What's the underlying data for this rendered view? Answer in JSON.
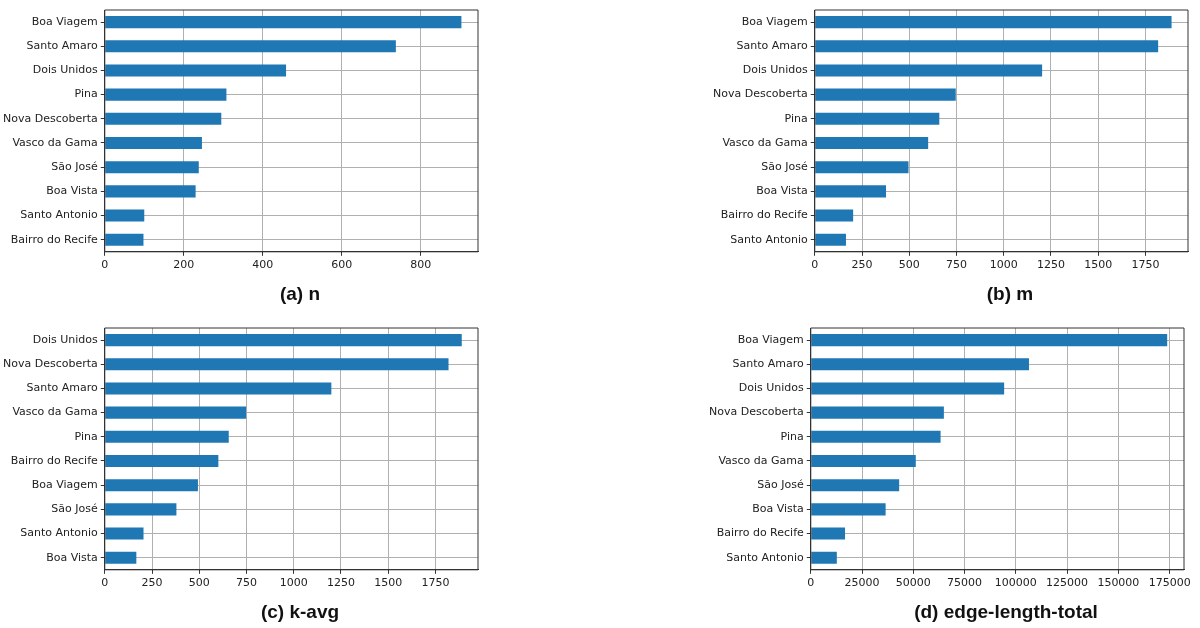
{
  "chart_data": [
    {
      "type": "bar",
      "orientation": "horizontal",
      "title": "(a) n",
      "categories": [
        "Boa Viagem",
        "Santo Amaro",
        "Dois Unidos",
        "Pina",
        "Nova Descoberta",
        "Vasco da Gama",
        "São José",
        "Boa Vista",
        "Santo Antonio",
        "Bairro do Recife"
      ],
      "values": [
        903,
        737,
        459,
        308,
        295,
        246,
        238,
        230,
        100,
        98
      ],
      "color": "#1f77b4",
      "xlim": [
        0,
        945
      ],
      "xticks": [
        0,
        200,
        400,
        600,
        800
      ],
      "grid": true
    },
    {
      "type": "bar",
      "orientation": "horizontal",
      "title": "(b) m",
      "categories": [
        "Boa Viagem",
        "Santo Amaro",
        "Dois Unidos",
        "Nova Descoberta",
        "Pina",
        "Vasco da Gama",
        "São José",
        "Boa Vista",
        "Bairro do Recife",
        "Santo Antonio"
      ],
      "values": [
        1888,
        1817,
        1203,
        746,
        659,
        600,
        496,
        377,
        203,
        165
      ],
      "color": "#1f77b4",
      "xlim": [
        0,
        1975
      ],
      "xticks": [
        0,
        250,
        500,
        750,
        1000,
        1250,
        1500,
        1750
      ],
      "grid": true
    },
    {
      "type": "bar",
      "orientation": "horizontal",
      "title": "(c) k-avg",
      "categories": [
        "Dois Unidos",
        "Nova Descoberta",
        "Santo Amaro",
        "Vasco da Gama",
        "Pina",
        "Bairro do Recife",
        "Boa Viagem",
        "São José",
        "Santo Antonio",
        "Boa Vista"
      ],
      "values": [
        1889,
        1819,
        1199,
        748,
        656,
        601,
        493,
        379,
        205,
        167
      ],
      "color": "#1f77b4",
      "xlim": [
        0,
        1975
      ],
      "xticks": [
        0,
        250,
        500,
        750,
        1000,
        1250,
        1500,
        1750
      ],
      "grid": true
    },
    {
      "type": "bar",
      "orientation": "horizontal",
      "title": "(d) edge-length-total",
      "categories": [
        "Boa Viagem",
        "Santo Amaro",
        "Dois Unidos",
        "Nova Descoberta",
        "Pina",
        "Vasco da Gama",
        "São José",
        "Boa Vista",
        "Bairro do Recife",
        "Santo Antonio"
      ],
      "values": [
        173800,
        106400,
        94300,
        64900,
        63300,
        51200,
        43100,
        36500,
        16700,
        12700
      ],
      "color": "#1f77b4",
      "xlim": [
        0,
        182000
      ],
      "xticks": [
        0,
        25000,
        50000,
        75000,
        100000,
        125000,
        150000,
        175000
      ],
      "grid": true
    }
  ]
}
